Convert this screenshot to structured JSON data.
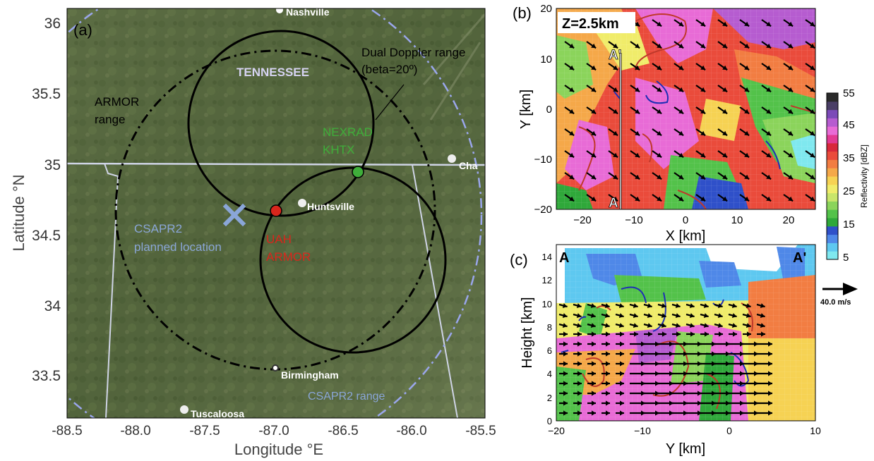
{
  "panel_a": {
    "label": "(a)",
    "xlabel": "Longitude °E",
    "ylabel": "Latitude °N",
    "xticks": [
      "-88.5",
      "-88.0",
      "-87.5",
      "-87.0",
      "-86.5",
      "-86.0",
      "-85.5"
    ],
    "yticks": [
      "33.5",
      "34",
      "34.5",
      "35",
      "35.5",
      "36"
    ],
    "annotations": {
      "dual_doppler": "Dual Doppler range",
      "beta": "(beta=20º)",
      "armor_range_1": "ARMOR",
      "armor_range_2": "range",
      "tennessee": "TENNESSEE",
      "nexrad_1": "NEXRAD",
      "nexrad_2": "KHTX",
      "csapr2_1": "CSAPR2",
      "csapr2_2": "planned location",
      "uah_1": "UAH",
      "uah_2": "ARMOR",
      "csapr2_range": "CSAPR2 range",
      "nashville": "Nashville",
      "huntsville": "Huntsville",
      "birmingham": "Birmingham",
      "tuscaloosa": "Tuscaloosa",
      "chattanooga": "Cha"
    },
    "colors": {
      "map": "#56683f",
      "nexrad": "#3fae3a",
      "armor": "#d9261c",
      "csapr2": "#8aa6d8"
    }
  },
  "panel_b": {
    "label": "(b)",
    "title": "Z=2.5km",
    "xlabel": "X [km]",
    "ylabel": "Y [km]",
    "xticks": [
      "−20",
      "−10",
      "0",
      "10",
      "20"
    ],
    "yticks": [
      "20",
      "10",
      "0",
      "−10",
      "−20"
    ],
    "section_top": "A'",
    "section_bottom": "A"
  },
  "colorbar": {
    "label": "Reflectivity [dBZ]",
    "ticks": [
      "55",
      "45",
      "35",
      "25",
      "15",
      "5"
    ],
    "colors": [
      "#7fe8ef",
      "#5ec8f0",
      "#4f88e8",
      "#2f50c9",
      "#2fa83a",
      "#53c24a",
      "#8bd45b",
      "#c9e56a",
      "#f0ec6a",
      "#f6d253",
      "#f5a849",
      "#f27d42",
      "#ea4b3b",
      "#d8283b",
      "#e23a93",
      "#e86bd6",
      "#b65cd0",
      "#7c4ab8",
      "#4a3f66",
      "#2a2a2a"
    ]
  },
  "panel_c": {
    "label": "(c)",
    "xlabel": "Y [km]",
    "ylabel": "Height [km]",
    "xticks": [
      "−20",
      "−10",
      "0",
      "10"
    ],
    "yticks": [
      "14",
      "12",
      "10",
      "8",
      "6",
      "4",
      "2",
      "0"
    ],
    "left_label": "A",
    "right_label": "A'",
    "ref_vector": "40.0 m/s"
  }
}
